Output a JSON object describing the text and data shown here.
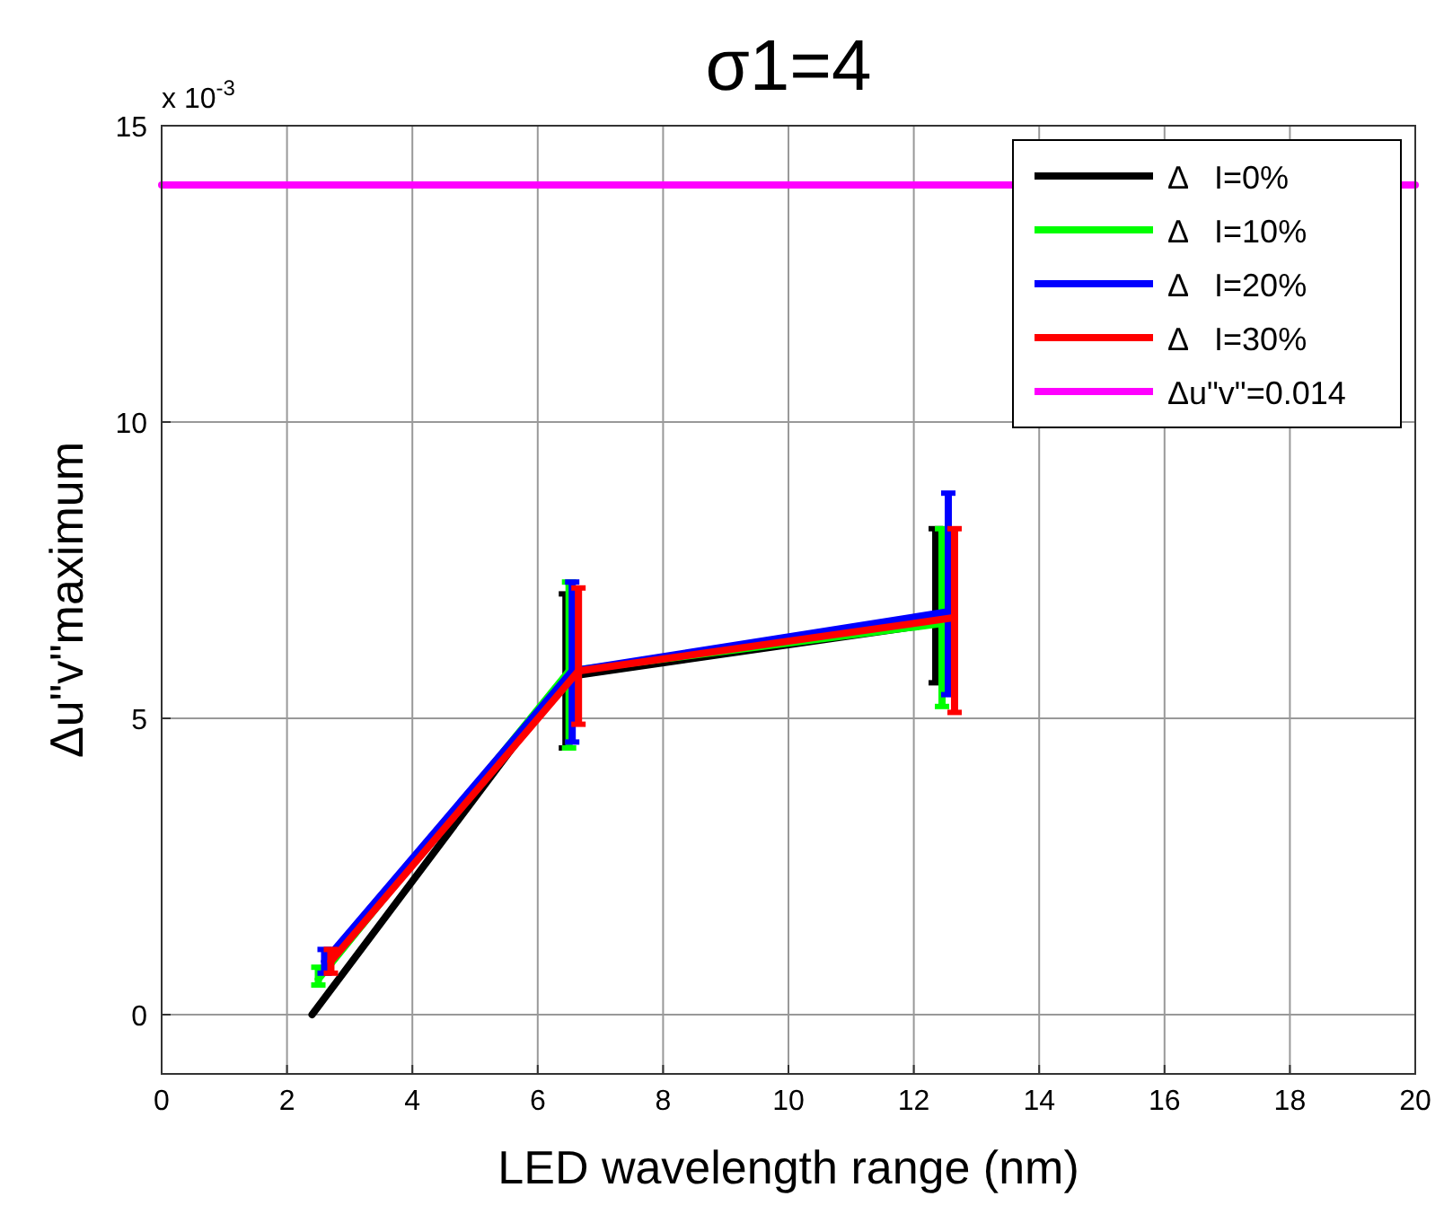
{
  "chart_data": {
    "type": "line",
    "title": "σ1=4",
    "xlabel": "LED wavelength range (nm)",
    "ylabel": "Δu\"v\"maximum",
    "annotations": [
      "x 10$^{-3}$"
    ],
    "xlim": [
      0,
      20
    ],
    "xticks": [
      0,
      2,
      4,
      6,
      8,
      10,
      12,
      14,
      16,
      18,
      20
    ],
    "ylim": [
      -1,
      15
    ],
    "yticks": [
      0,
      5,
      10,
      15
    ],
    "grid": true,
    "legend": "top right",
    "marker": "none",
    "line_style": "solid",
    "series": [
      {
        "name": "Δ   I=0%",
        "color": "#000000",
        "x": [
          2.4,
          6.45,
          12.35
        ],
        "values": [
          0,
          5.7,
          6.6
        ],
        "errors": [
          null,
          [
            4.5,
            7.1
          ],
          [
            5.6,
            8.2
          ]
        ]
      },
      {
        "name": "Δ   I=10%",
        "color": "#00ff00",
        "x": [
          2.5,
          6.5,
          12.45
        ],
        "values": [
          0.6,
          5.8,
          6.6
        ],
        "errors": [
          [
            0.5,
            0.8
          ],
          [
            4.5,
            7.3
          ],
          [
            5.2,
            8.2
          ]
        ]
      },
      {
        "name": "Δ   I=20%",
        "color": "#0000ff",
        "x": [
          2.6,
          6.55,
          12.55
        ],
        "values": [
          0.9,
          5.8,
          6.8
        ],
        "errors": [
          [
            0.7,
            1.1
          ],
          [
            4.6,
            7.3
          ],
          [
            5.4,
            8.8
          ]
        ]
      },
      {
        "name": "Δ   I=30%",
        "color": "#ff0000",
        "x": [
          2.7,
          6.65,
          12.65
        ],
        "values": [
          0.9,
          5.8,
          6.7
        ],
        "errors": [
          [
            0.7,
            1.1
          ],
          [
            4.9,
            7.2
          ],
          [
            5.1,
            8.2
          ]
        ]
      },
      {
        "name": "Δu\"v\"=0.014",
        "color": "#ff00ff",
        "x": [
          0,
          20
        ],
        "values": [
          14,
          14
        ]
      }
    ]
  }
}
